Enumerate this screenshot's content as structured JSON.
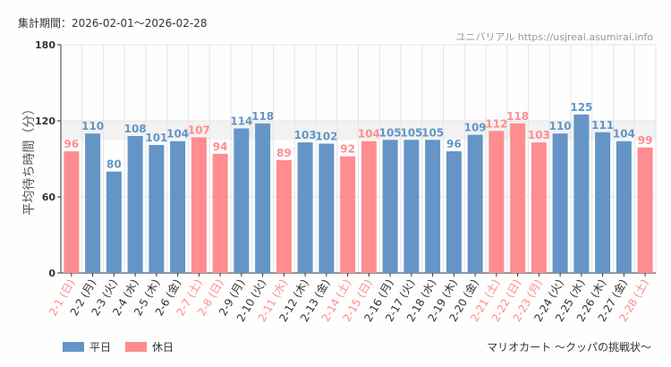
{
  "header": {
    "period": "集計期間：2026-02-01～2026-02-28",
    "credit": "ユニバリアル  https://usjreal.asumirai.info"
  },
  "footer": {
    "subtitle": "マリオカート ～クッパの挑戦状～"
  },
  "colors": {
    "weekday": "#6495c6",
    "holiday": "#ff8c8f",
    "grid": "#e4e4e4",
    "band": "#f2f2f2"
  },
  "chart_data": {
    "type": "bar",
    "ylabel": "平均待ち時間（分）",
    "ylim": [
      0,
      180
    ],
    "yticks": [
      0,
      60,
      120,
      180
    ],
    "grid": true,
    "legend_placement": "bottom-left",
    "legend": [
      {
        "name": "平日",
        "kind": "weekday"
      },
      {
        "name": "休日",
        "kind": "holiday"
      }
    ],
    "categories": [
      "2-1 (日)",
      "2-2 (月)",
      "2-3 (火)",
      "2-4 (水)",
      "2-5 (木)",
      "2-6 (金)",
      "2-7 (土)",
      "2-8 (日)",
      "2-9 (月)",
      "2-10 (火)",
      "2-11 (水)",
      "2-12 (木)",
      "2-13 (金)",
      "2-14 (土)",
      "2-15 (日)",
      "2-16 (月)",
      "2-17 (火)",
      "2-18 (水)",
      "2-19 (木)",
      "2-20 (金)",
      "2-21 (土)",
      "2-22 (日)",
      "2-23 (月)",
      "2-24 (火)",
      "2-25 (水)",
      "2-26 (木)",
      "2-27 (金)",
      "2-28 (土)"
    ],
    "values": [
      96,
      110,
      80,
      108,
      101,
      104,
      107,
      94,
      114,
      118,
      89,
      103,
      102,
      92,
      104,
      105,
      105,
      105,
      96,
      109,
      112,
      118,
      103,
      110,
      125,
      111,
      104,
      99
    ],
    "holiday": [
      true,
      false,
      false,
      false,
      false,
      false,
      true,
      true,
      false,
      false,
      true,
      false,
      false,
      true,
      true,
      false,
      false,
      false,
      false,
      false,
      true,
      true,
      true,
      false,
      false,
      false,
      false,
      true
    ]
  }
}
